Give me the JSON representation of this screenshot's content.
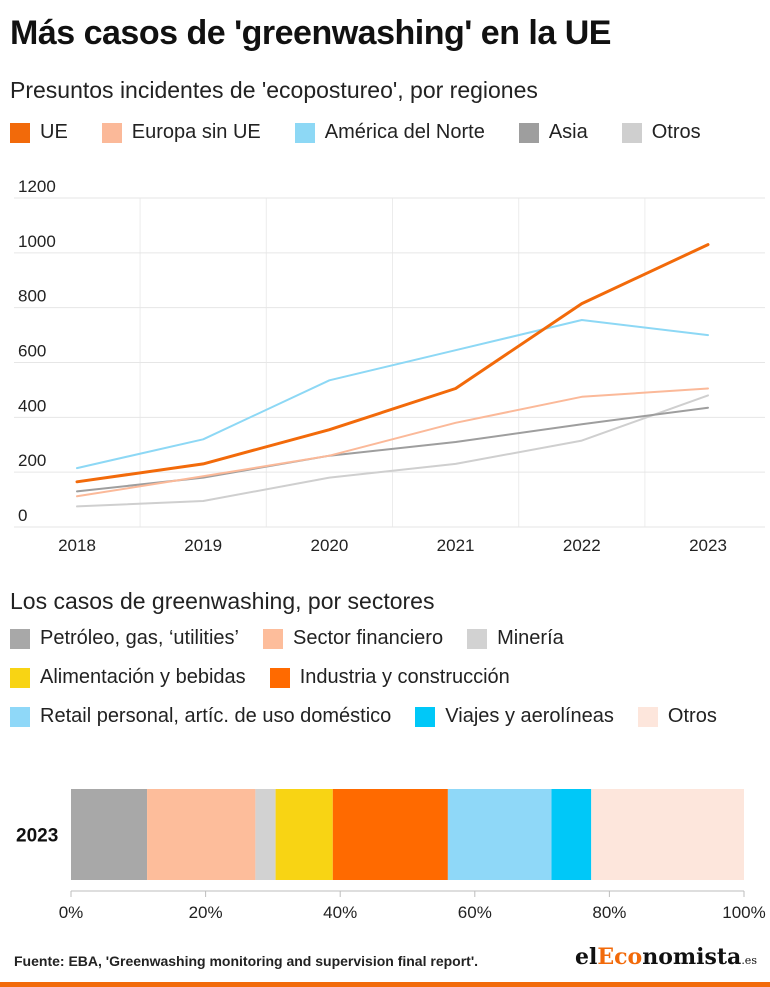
{
  "title": "Más casos de 'greenwashing' en la UE",
  "subtitle": "Presuntos incidentes de 'ecopostureo', por regiones",
  "section2_title": "Los casos de greenwashing, por sectores",
  "source": "Fuente:  EBA, 'Greenwashing monitoring and supervision final report'.",
  "brand": {
    "part1": "el",
    "part2": "Eco",
    "part3": "nomista",
    "tld": ".es"
  },
  "colors": {
    "accent": "#f26a0a"
  },
  "chart_data": [
    {
      "type": "line",
      "title": "Presuntos incidentes de 'ecopostureo', por regiones",
      "x": [
        "2018",
        "2019",
        "2020",
        "2021",
        "2022",
        "2023"
      ],
      "ylim": [
        0,
        1200
      ],
      "yticks": [
        "0",
        "200",
        "400",
        "600",
        "800",
        "1000",
        "1200"
      ],
      "grid": true,
      "series": [
        {
          "name": "UE",
          "color": "#f26a0a",
          "values": [
            165,
            230,
            355,
            505,
            815,
            1030
          ]
        },
        {
          "name": "Europa sin UE",
          "color": "#fbb999",
          "values": [
            112,
            185,
            260,
            380,
            475,
            505
          ]
        },
        {
          "name": "América del Norte",
          "color": "#8dd8f5",
          "values": [
            215,
            320,
            535,
            645,
            755,
            700
          ]
        },
        {
          "name": "Asia",
          "color": "#9e9e9e",
          "values": [
            130,
            180,
            260,
            310,
            375,
            435
          ]
        },
        {
          "name": "Otros",
          "color": "#cfcfcf",
          "values": [
            75,
            95,
            180,
            230,
            315,
            480
          ]
        }
      ]
    },
    {
      "type": "bar",
      "stacked": true,
      "orientation": "horizontal",
      "title": "Los casos de greenwashing, por sectores",
      "categories": [
        "2023"
      ],
      "xlim": [
        0,
        100
      ],
      "xticks": [
        "0%",
        "20%",
        "40%",
        "60%",
        "80%",
        "100%"
      ],
      "series": [
        {
          "name": "Petróleo, gas, ‘utilities’",
          "color": "#a8a8a8",
          "values": [
            11.3
          ]
        },
        {
          "name": "Sector financiero",
          "color": "#fdbd9b",
          "values": [
            16.1
          ]
        },
        {
          "name": "Minería",
          "color": "#d2d2d2",
          "values": [
            3.0
          ]
        },
        {
          "name": "Alimentación y bebidas",
          "color": "#f8d414",
          "values": [
            8.5
          ]
        },
        {
          "name": "Industria y construcción",
          "color": "#ff6a00",
          "values": [
            17.1
          ]
        },
        {
          "name": "Retail personal, artíc. de uso doméstico",
          "color": "#8fd8f8",
          "values": [
            15.4
          ]
        },
        {
          "name": "Viajes y aerolíneas",
          "color": "#00c8f8",
          "values": [
            5.9
          ]
        },
        {
          "name": "Otros",
          "color": "#fde6dc",
          "values": [
            22.7
          ]
        }
      ]
    }
  ]
}
